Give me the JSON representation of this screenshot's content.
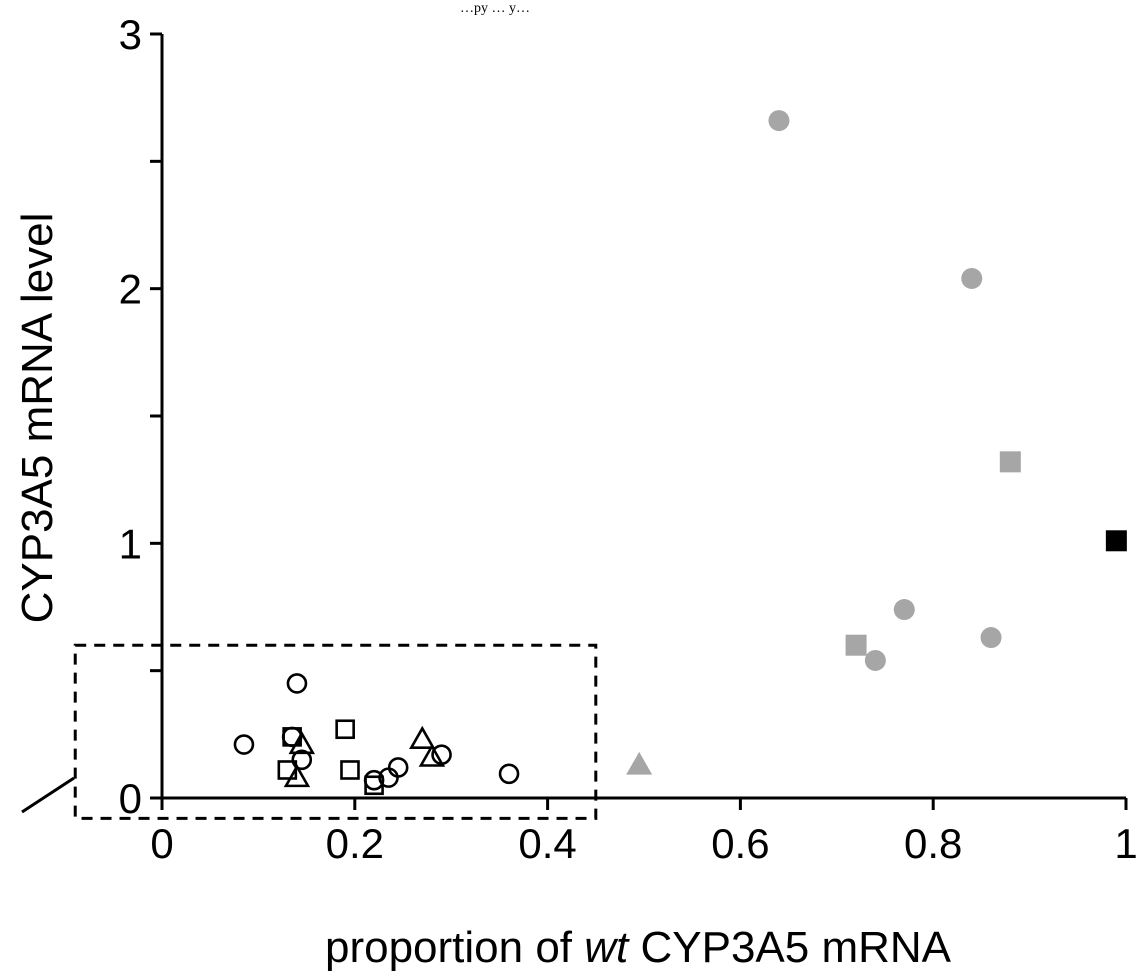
{
  "header_note": "…py … y…",
  "chart_data": {
    "type": "scatter",
    "xlabel_prefix": "proportion of ",
    "xlabel_italic": "wt",
    "xlabel_suffix": " CYP3A5 mRNA",
    "ylabel": "CYP3A5 mRNA level",
    "xlim": [
      0,
      1
    ],
    "ylim": [
      0,
      3
    ],
    "x_ticks": [
      {
        "value": 0,
        "label": "0"
      },
      {
        "value": 0.2,
        "label": "0.2"
      },
      {
        "value": 0.4,
        "label": "0.4"
      },
      {
        "value": 0.6,
        "label": "0.6"
      },
      {
        "value": 0.8,
        "label": "0.8"
      },
      {
        "value": 1,
        "label": "1"
      }
    ],
    "y_ticks": [
      {
        "value": 0,
        "label": "0"
      },
      {
        "value": 0.5,
        "label": ""
      },
      {
        "value": 1,
        "label": "1"
      },
      {
        "value": 1.5,
        "label": ""
      },
      {
        "value": 2,
        "label": "2"
      },
      {
        "value": 2.5,
        "label": ""
      },
      {
        "value": 3,
        "label": "3"
      }
    ],
    "highlight_box": {
      "x": [
        -0.09,
        0.45
      ],
      "y": [
        -0.08,
        0.6
      ],
      "style": "dashed"
    },
    "colors": {
      "open": "#000000",
      "gray": "#a6a6a6",
      "black": "#000000"
    },
    "series": [
      {
        "marker": "circle",
        "fill": "open",
        "points": [
          [
            0.085,
            0.21
          ],
          [
            0.135,
            0.24
          ],
          [
            0.14,
            0.45
          ],
          [
            0.145,
            0.15
          ],
          [
            0.22,
            0.07
          ],
          [
            0.235,
            0.08
          ],
          [
            0.245,
            0.12
          ],
          [
            0.29,
            0.17
          ],
          [
            0.36,
            0.095
          ]
        ]
      },
      {
        "marker": "square",
        "fill": "open",
        "points": [
          [
            0.13,
            0.11
          ],
          [
            0.135,
            0.24
          ],
          [
            0.19,
            0.27
          ],
          [
            0.195,
            0.11
          ],
          [
            0.22,
            0.05
          ]
        ]
      },
      {
        "marker": "triangle",
        "fill": "open",
        "points": [
          [
            0.14,
            0.08
          ],
          [
            0.145,
            0.21
          ],
          [
            0.27,
            0.23
          ],
          [
            0.28,
            0.16
          ]
        ]
      },
      {
        "marker": "circle",
        "fill": "gray",
        "points": [
          [
            0.64,
            2.66
          ],
          [
            0.74,
            0.54
          ],
          [
            0.77,
            0.74
          ],
          [
            0.84,
            2.04
          ],
          [
            0.86,
            0.63
          ]
        ]
      },
      {
        "marker": "square",
        "fill": "gray",
        "points": [
          [
            0.72,
            0.6
          ],
          [
            0.88,
            1.32
          ]
        ]
      },
      {
        "marker": "triangle",
        "fill": "gray",
        "points": [
          [
            0.495,
            0.13
          ]
        ]
      },
      {
        "marker": "square",
        "fill": "black",
        "points": [
          [
            0.99,
            1.01
          ]
        ]
      }
    ]
  }
}
